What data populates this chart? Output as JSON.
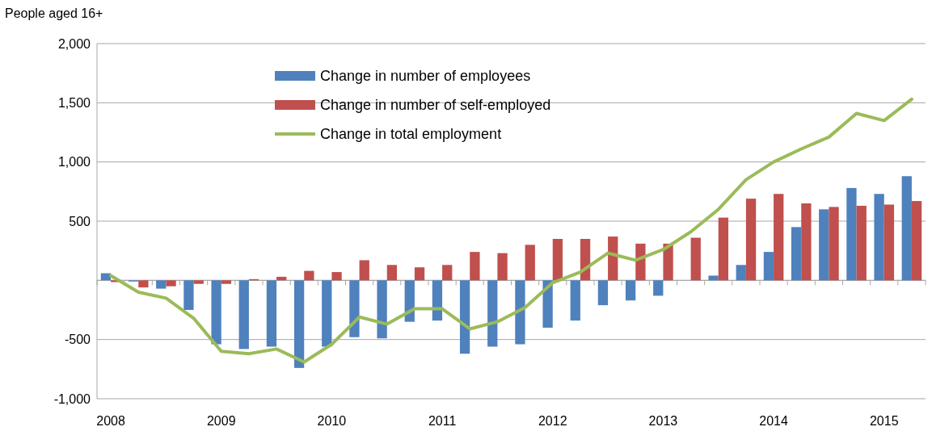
{
  "chart_data": {
    "type": "bar",
    "ylabel": "People aged 16+",
    "categories": [
      "2008",
      null,
      null,
      null,
      "2009",
      null,
      null,
      null,
      "2010",
      null,
      null,
      null,
      "2011",
      null,
      null,
      null,
      "2012",
      null,
      null,
      null,
      "2013",
      null,
      null,
      null,
      "2014",
      null,
      null,
      null,
      "2015",
      null
    ],
    "series": [
      {
        "name": "Change in number of employees",
        "color": "#4f81bd",
        "values": [
          60,
          -10,
          -70,
          -250,
          -540,
          -580,
          -560,
          -740,
          -560,
          -480,
          -490,
          -350,
          -340,
          -620,
          -560,
          -540,
          -400,
          -340,
          -210,
          -170,
          -130,
          0,
          40,
          130,
          240,
          450,
          600,
          780,
          730,
          880
        ]
      },
      {
        "name": "Change in number of self-employed",
        "color": "#c0504d",
        "values": [
          -15,
          -60,
          -50,
          -30,
          -30,
          10,
          30,
          80,
          70,
          170,
          130,
          110,
          130,
          240,
          230,
          300,
          350,
          350,
          370,
          310,
          310,
          360,
          530,
          690,
          730,
          650,
          620,
          630,
          640,
          670
        ]
      },
      {
        "name": "Change in total employment",
        "type": "line",
        "color": "#9bbb59",
        "values": [
          40,
          -100,
          -150,
          -320,
          -600,
          -620,
          -580,
          -690,
          -540,
          -310,
          -370,
          -240,
          -240,
          -410,
          -350,
          -230,
          -20,
          70,
          230,
          170,
          260,
          410,
          600,
          850,
          1000,
          1110,
          1210,
          1410,
          1350,
          1530
        ]
      }
    ],
    "ylim": [
      -1000,
      2000
    ],
    "yticks": [
      {
        "value": -1000,
        "label": "-1,000"
      },
      {
        "value": -500,
        "label": "-500"
      },
      {
        "value": 0,
        "label": null
      },
      {
        "value": 500,
        "label": "500"
      },
      {
        "value": 1000,
        "label": "1,000"
      },
      {
        "value": 1500,
        "label": "1,500"
      },
      {
        "value": 2000,
        "label": "2,000"
      }
    ],
    "grid": "y",
    "legend": "top"
  }
}
